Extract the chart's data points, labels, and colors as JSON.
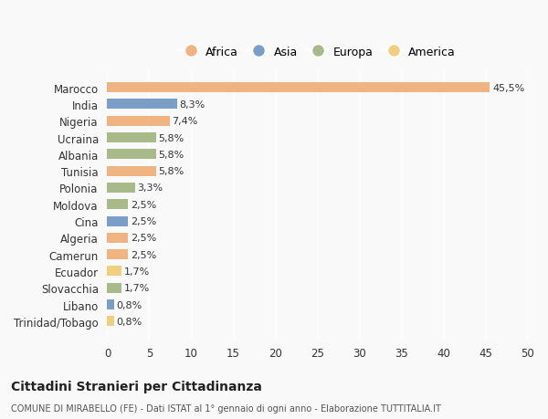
{
  "countries": [
    "Trinidad/Tobago",
    "Libano",
    "Slovacchia",
    "Ecuador",
    "Camerun",
    "Algeria",
    "Cina",
    "Moldova",
    "Polonia",
    "Tunisia",
    "Albania",
    "Ucraina",
    "Nigeria",
    "India",
    "Marocco"
  ],
  "values": [
    0.8,
    0.8,
    1.7,
    1.7,
    2.5,
    2.5,
    2.5,
    2.5,
    3.3,
    5.8,
    5.8,
    5.8,
    7.4,
    8.3,
    45.5
  ],
  "labels": [
    "0,8%",
    "0,8%",
    "1,7%",
    "1,7%",
    "2,5%",
    "2,5%",
    "2,5%",
    "2,5%",
    "3,3%",
    "5,8%",
    "5,8%",
    "5,8%",
    "7,4%",
    "8,3%",
    "45,5%"
  ],
  "continents": [
    "America",
    "Asia",
    "Europa",
    "America",
    "Africa",
    "Africa",
    "Asia",
    "Europa",
    "Europa",
    "Africa",
    "Europa",
    "Europa",
    "Africa",
    "Asia",
    "Africa"
  ],
  "continent_colors": {
    "Africa": "#F0B482",
    "Asia": "#7B9EC9",
    "Europa": "#A8BA8A",
    "America": "#F0D080"
  },
  "legend_order": [
    "Africa",
    "Asia",
    "Europa",
    "America"
  ],
  "background_color": "#f9f9f9",
  "title": "Cittadini Stranieri per Cittadinanza",
  "subtitle": "COMUNE DI MIRABELLO (FE) - Dati ISTAT al 1° gennaio di ogni anno - Elaborazione TUTTITALIA.IT",
  "xlim": [
    0,
    50
  ],
  "xticks": [
    0,
    5,
    10,
    15,
    20,
    25,
    30,
    35,
    40,
    45,
    50
  ]
}
